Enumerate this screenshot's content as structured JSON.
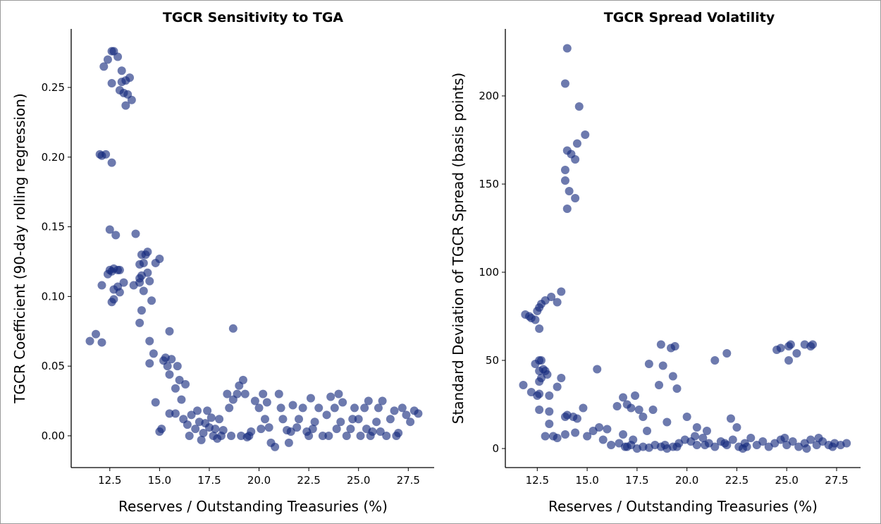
{
  "colors": {
    "point": "#14287d",
    "axis": "#000000"
  },
  "chart_data": [
    {
      "type": "scatter",
      "title": "TGCR Sensitivity to TGA",
      "xlabel": "Reserves / Outstanding Treasuries (%)",
      "ylabel": "TGCR Coefficient (90-day rolling regression)",
      "xlim": [
        10.56,
        28.8
      ],
      "ylim": [
        -0.0228,
        0.292
      ],
      "xticks": [
        "12.5",
        "15.0",
        "17.5",
        "20.0",
        "22.5",
        "25.0",
        "27.5"
      ],
      "yticks": [
        "0.00",
        "0.05",
        "0.10",
        "0.15",
        "0.20",
        "0.25"
      ],
      "grid": false,
      "points": [
        [
          12.6,
          0.276
        ],
        [
          12.7,
          0.276
        ],
        [
          12.4,
          0.27
        ],
        [
          12.9,
          0.272
        ],
        [
          12.2,
          0.265
        ],
        [
          13.1,
          0.262
        ],
        [
          12.6,
          0.253
        ],
        [
          13.0,
          0.248
        ],
        [
          13.3,
          0.255
        ],
        [
          13.5,
          0.257
        ],
        [
          13.2,
          0.246
        ],
        [
          13.4,
          0.245
        ],
        [
          13.6,
          0.241
        ],
        [
          13.3,
          0.237
        ],
        [
          13.1,
          0.254
        ],
        [
          12.0,
          0.202
        ],
        [
          12.3,
          0.202
        ],
        [
          12.1,
          0.201
        ],
        [
          12.6,
          0.196
        ],
        [
          12.5,
          0.148
        ],
        [
          12.8,
          0.144
        ],
        [
          13.8,
          0.145
        ],
        [
          12.5,
          0.119
        ],
        [
          12.7,
          0.12
        ],
        [
          12.9,
          0.119
        ],
        [
          13.0,
          0.119
        ],
        [
          12.4,
          0.116
        ],
        [
          12.6,
          0.118
        ],
        [
          12.1,
          0.108
        ],
        [
          12.7,
          0.105
        ],
        [
          12.9,
          0.107
        ],
        [
          12.7,
          0.098
        ],
        [
          12.6,
          0.096
        ],
        [
          13.0,
          0.103
        ],
        [
          13.2,
          0.11
        ],
        [
          13.7,
          0.108
        ],
        [
          14.1,
          0.13
        ],
        [
          14.3,
          0.13
        ],
        [
          14.4,
          0.132
        ],
        [
          14.0,
          0.123
        ],
        [
          14.2,
          0.124
        ],
        [
          14.4,
          0.117
        ],
        [
          14.1,
          0.115
        ],
        [
          14.0,
          0.113
        ],
        [
          14.5,
          0.111
        ],
        [
          14.0,
          0.11
        ],
        [
          14.2,
          0.104
        ],
        [
          14.8,
          0.124
        ],
        [
          15.0,
          0.127
        ],
        [
          14.6,
          0.097
        ],
        [
          14.1,
          0.09
        ],
        [
          14.0,
          0.081
        ],
        [
          11.5,
          0.068
        ],
        [
          11.8,
          0.073
        ],
        [
          12.1,
          0.067
        ],
        [
          14.5,
          0.068
        ],
        [
          14.7,
          0.059
        ],
        [
          14.5,
          0.052
        ],
        [
          14.8,
          0.024
        ],
        [
          15.5,
          0.075
        ],
        [
          15.3,
          0.056
        ],
        [
          15.2,
          0.054
        ],
        [
          15.6,
          0.055
        ],
        [
          15.4,
          0.05
        ],
        [
          15.9,
          0.05
        ],
        [
          15.5,
          0.044
        ],
        [
          16.0,
          0.04
        ],
        [
          16.3,
          0.037
        ],
        [
          15.8,
          0.034
        ],
        [
          16.1,
          0.026
        ],
        [
          15.1,
          0.005
        ],
        [
          15.0,
          0.003
        ],
        [
          15.5,
          0.016
        ],
        [
          15.8,
          0.016
        ],
        [
          18.7,
          0.077
        ],
        [
          16.2,
          0.012
        ],
        [
          16.4,
          0.008
        ],
        [
          16.6,
          0.015
        ],
        [
          16.8,
          0.005
        ],
        [
          17.0,
          0.01
        ],
        [
          17.2,
          0.002
        ],
        [
          17.4,
          0.018
        ],
        [
          17.5,
          0.006
        ],
        [
          17.7,
          0.0
        ],
        [
          17.9,
          -0.002
        ],
        [
          18.0,
          0.012
        ],
        [
          18.2,
          0.004
        ],
        [
          18.4,
          0.03
        ],
        [
          18.5,
          0.02
        ],
        [
          18.7,
          0.026
        ],
        [
          18.9,
          0.03
        ],
        [
          19.0,
          0.036
        ],
        [
          19.2,
          0.04
        ],
        [
          19.1,
          0.0
        ],
        [
          19.4,
          -0.001
        ],
        [
          19.6,
          0.003
        ],
        [
          19.8,
          0.025
        ],
        [
          20.0,
          0.02
        ],
        [
          20.2,
          0.03
        ],
        [
          20.3,
          0.012
        ],
        [
          20.5,
          0.006
        ],
        [
          20.6,
          -0.005
        ],
        [
          20.8,
          -0.008
        ],
        [
          21.0,
          0.03
        ],
        [
          21.2,
          0.012
        ],
        [
          21.4,
          0.004
        ],
        [
          21.5,
          -0.005
        ],
        [
          21.7,
          0.022
        ],
        [
          21.9,
          0.006
        ],
        [
          22.0,
          0.012
        ],
        [
          22.2,
          0.02
        ],
        [
          22.4,
          0.003
        ],
        [
          22.6,
          0.027
        ],
        [
          22.8,
          0.01
        ],
        [
          23.0,
          0.02
        ],
        [
          23.2,
          0.0
        ],
        [
          23.4,
          0.015
        ],
        [
          23.6,
          0.028
        ],
        [
          23.8,
          0.02
        ],
        [
          24.0,
          0.03
        ],
        [
          24.2,
          0.024
        ],
        [
          24.4,
          0.0
        ],
        [
          24.6,
          0.005
        ],
        [
          24.8,
          0.02
        ],
        [
          25.0,
          0.012
        ],
        [
          25.1,
          0.0
        ],
        [
          25.3,
          0.02
        ],
        [
          25.5,
          0.025
        ],
        [
          25.7,
          0.003
        ],
        [
          25.9,
          0.01
        ],
        [
          26.0,
          0.02
        ],
        [
          26.2,
          0.025
        ],
        [
          26.4,
          0.0
        ],
        [
          26.6,
          0.012
        ],
        [
          26.8,
          0.018
        ],
        [
          27.0,
          0.002
        ],
        [
          27.2,
          0.02
        ],
        [
          27.4,
          0.015
        ],
        [
          27.6,
          0.01
        ],
        [
          27.8,
          0.018
        ],
        [
          28.0,
          0.016
        ],
        [
          16.5,
          0.0
        ],
        [
          17.1,
          -0.003
        ],
        [
          17.6,
          0.013
        ],
        [
          18.1,
          0.0
        ],
        [
          18.6,
          0.0
        ],
        [
          19.3,
          0.03
        ],
        [
          20.1,
          0.005
        ],
        [
          21.1,
          0.02
        ],
        [
          22.5,
          0.0
        ],
        [
          23.5,
          0.0
        ],
        [
          24.1,
          0.01
        ],
        [
          25.6,
          0.0
        ],
        [
          26.1,
          0.003
        ],
        [
          26.9,
          0.0
        ],
        [
          16.9,
          0.018
        ],
        [
          17.3,
          0.009
        ],
        [
          17.8,
          0.005
        ],
        [
          19.5,
          0.0
        ],
        [
          20.4,
          0.024
        ],
        [
          21.6,
          0.003
        ],
        [
          22.7,
          0.005
        ],
        [
          23.9,
          0.005
        ],
        [
          24.7,
          0.012
        ],
        [
          25.4,
          0.005
        ]
      ]
    },
    {
      "type": "scatter",
      "title": "TGCR Spread Volatility",
      "xlabel": "Reserves / Outstanding Treasuries (%)",
      "ylabel": "Standard Deviation of TGCR Spread (basis points)",
      "xlim": [
        10.9,
        28.7
      ],
      "ylim": [
        -10.8,
        238
      ],
      "xticks": [
        "12.5",
        "15.0",
        "17.5",
        "20.0",
        "22.5",
        "25.0",
        "27.5"
      ],
      "yticks": [
        "0",
        "50",
        "100",
        "150",
        "200"
      ],
      "grid": false,
      "points": [
        [
          14.0,
          227
        ],
        [
          13.9,
          207
        ],
        [
          14.6,
          194
        ],
        [
          14.9,
          178
        ],
        [
          14.5,
          173
        ],
        [
          14.0,
          169
        ],
        [
          14.2,
          167
        ],
        [
          14.4,
          164
        ],
        [
          13.9,
          158
        ],
        [
          13.9,
          152
        ],
        [
          14.1,
          146
        ],
        [
          14.4,
          142
        ],
        [
          14.0,
          136
        ],
        [
          11.9,
          76
        ],
        [
          12.1,
          75
        ],
        [
          12.2,
          74
        ],
        [
          12.4,
          73
        ],
        [
          12.6,
          80
        ],
        [
          12.5,
          78
        ],
        [
          12.7,
          82
        ],
        [
          12.9,
          84
        ],
        [
          13.2,
          86
        ],
        [
          13.5,
          83
        ],
        [
          13.7,
          89
        ],
        [
          12.6,
          68
        ],
        [
          12.4,
          48
        ],
        [
          12.6,
          50
        ],
        [
          12.7,
          50
        ],
        [
          12.8,
          45
        ],
        [
          12.9,
          44
        ],
        [
          13.0,
          42
        ],
        [
          12.6,
          44
        ],
        [
          12.7,
          40
        ],
        [
          12.6,
          38
        ],
        [
          11.8,
          36
        ],
        [
          12.2,
          32
        ],
        [
          12.5,
          30
        ],
        [
          12.6,
          31
        ],
        [
          13.1,
          30
        ],
        [
          13.5,
          35
        ],
        [
          13.7,
          40
        ],
        [
          12.6,
          22
        ],
        [
          13.1,
          21
        ],
        [
          13.1,
          14
        ],
        [
          13.9,
          18
        ],
        [
          14.0,
          19
        ],
        [
          14.3,
          18
        ],
        [
          14.5,
          17
        ],
        [
          14.8,
          23
        ],
        [
          15.5,
          45
        ],
        [
          12.9,
          7
        ],
        [
          13.3,
          7
        ],
        [
          13.5,
          6
        ],
        [
          13.9,
          8
        ],
        [
          14.4,
          9
        ],
        [
          15.0,
          7
        ],
        [
          15.3,
          10
        ],
        [
          15.6,
          12
        ],
        [
          16.0,
          11
        ],
        [
          16.5,
          24
        ],
        [
          16.8,
          29
        ],
        [
          17.0,
          25
        ],
        [
          17.2,
          23
        ],
        [
          17.4,
          30
        ],
        [
          17.6,
          22
        ],
        [
          17.8,
          18
        ],
        [
          18.1,
          48
        ],
        [
          18.3,
          22
        ],
        [
          18.6,
          36
        ],
        [
          18.7,
          59
        ],
        [
          18.8,
          47
        ],
        [
          19.2,
          57
        ],
        [
          19.4,
          58
        ],
        [
          19.3,
          41
        ],
        [
          19.5,
          34
        ],
        [
          18.0,
          10
        ],
        [
          19.0,
          15
        ],
        [
          20.0,
          18
        ],
        [
          20.5,
          12
        ],
        [
          21.0,
          10
        ],
        [
          21.4,
          50
        ],
        [
          22.0,
          54
        ],
        [
          22.2,
          17
        ],
        [
          22.5,
          12
        ],
        [
          24.5,
          56
        ],
        [
          24.7,
          57
        ],
        [
          25.1,
          58
        ],
        [
          25.2,
          59
        ],
        [
          25.1,
          50
        ],
        [
          25.5,
          54
        ],
        [
          25.9,
          59
        ],
        [
          26.2,
          58
        ],
        [
          26.3,
          59
        ],
        [
          16.6,
          3
        ],
        [
          16.9,
          1
        ],
        [
          17.2,
          2
        ],
        [
          17.5,
          0
        ],
        [
          17.8,
          1
        ],
        [
          18.1,
          0.5
        ],
        [
          18.4,
          2
        ],
        [
          18.7,
          1
        ],
        [
          19.0,
          0
        ],
        [
          19.3,
          1
        ],
        [
          19.6,
          3
        ],
        [
          19.9,
          5
        ],
        [
          20.2,
          4
        ],
        [
          20.5,
          2
        ],
        [
          20.8,
          6
        ],
        [
          21.1,
          3
        ],
        [
          21.4,
          1
        ],
        [
          21.7,
          4
        ],
        [
          22.0,
          2
        ],
        [
          22.3,
          5
        ],
        [
          22.6,
          1
        ],
        [
          22.9,
          3
        ],
        [
          23.2,
          6
        ],
        [
          23.5,
          2
        ],
        [
          23.8,
          4
        ],
        [
          24.1,
          1
        ],
        [
          24.4,
          3
        ],
        [
          24.7,
          5
        ],
        [
          25.0,
          2
        ],
        [
          25.3,
          4
        ],
        [
          25.6,
          1
        ],
        [
          25.9,
          3
        ],
        [
          26.2,
          5
        ],
        [
          26.5,
          2
        ],
        [
          26.8,
          4
        ],
        [
          27.1,
          2
        ],
        [
          27.4,
          3
        ],
        [
          27.7,
          2
        ],
        [
          28.0,
          3
        ],
        [
          16.8,
          8
        ],
        [
          17.3,
          5
        ],
        [
          18.9,
          2
        ],
        [
          20.4,
          7
        ],
        [
          21.9,
          3
        ],
        [
          23.0,
          1
        ],
        [
          24.9,
          6
        ],
        [
          26.0,
          0
        ],
        [
          26.6,
          6
        ],
        [
          27.3,
          1
        ],
        [
          15.8,
          5
        ],
        [
          16.2,
          2
        ],
        [
          17.0,
          1
        ],
        [
          19.5,
          1
        ],
        [
          20.9,
          2
        ],
        [
          22.8,
          0
        ]
      ]
    }
  ]
}
